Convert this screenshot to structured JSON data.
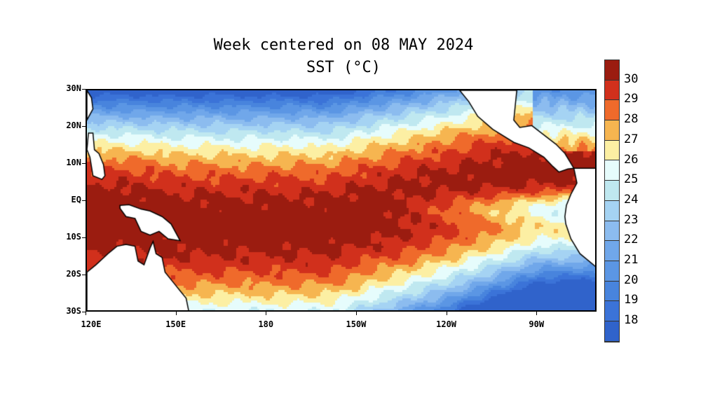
{
  "title": "Week centered on 08 MAY 2024",
  "subtitle": "SST (°C)",
  "chart_data": {
    "type": "heatmap",
    "variable": "Sea surface temperature",
    "units": "°C",
    "x_ticks": [
      "120E",
      "150E",
      "180",
      "150W",
      "120W",
      "90W"
    ],
    "x_tick_values": [
      120,
      150,
      180,
      210,
      240,
      270
    ],
    "y_ticks": [
      "30N",
      "20N",
      "10N",
      "EQ",
      "10S",
      "20S",
      "30S"
    ],
    "y_tick_values": [
      30,
      20,
      10,
      0,
      -10,
      -20,
      -30
    ],
    "lon_range": [
      120,
      290
    ],
    "lat_range": [
      -30,
      30
    ],
    "colorbar_labels": [
      "30",
      "29",
      "28",
      "27",
      "26",
      "25",
      "24",
      "23",
      "22",
      "21",
      "20",
      "19",
      "18"
    ],
    "colorbar_colors": [
      "#9b1c10",
      "#d1301c",
      "#ef6a2b",
      "#f6b550",
      "#fcefa3",
      "#e6fcfc",
      "#bfe8f0",
      "#a5d3f3",
      "#8cbcef",
      "#70a7ea",
      "#5b96e4",
      "#4884dd",
      "#3b73d8",
      "#3063cb"
    ],
    "levels": [
      30,
      29,
      28,
      27,
      26,
      25,
      24,
      23,
      22,
      21,
      20,
      19,
      18
    ]
  }
}
